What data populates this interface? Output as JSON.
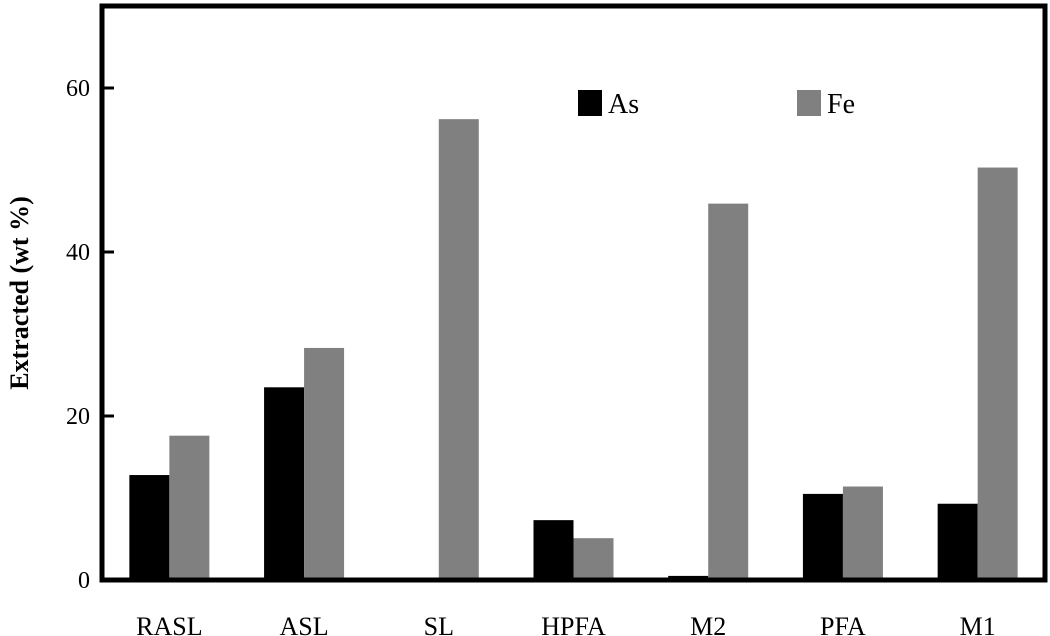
{
  "chart_data": {
    "type": "bar",
    "categories": [
      "RASL",
      "ASL",
      "SL",
      "HPFA",
      "M2",
      "PFA",
      "M1"
    ],
    "series": [
      {
        "name": "As",
        "values": [
          12.8,
          23.5,
          0.0,
          7.3,
          0.5,
          10.5,
          9.3
        ],
        "color": "#000000"
      },
      {
        "name": "Fe",
        "values": [
          17.6,
          28.3,
          56.2,
          5.1,
          45.9,
          11.4,
          50.3
        ],
        "color": "#808080"
      }
    ],
    "ylabel": "Extracted (wt %)",
    "xlabel": "",
    "ylim": [
      0,
      70
    ],
    "yticks": [
      0,
      20,
      40,
      60
    ],
    "legend_position": "top-center",
    "grid": false
  }
}
